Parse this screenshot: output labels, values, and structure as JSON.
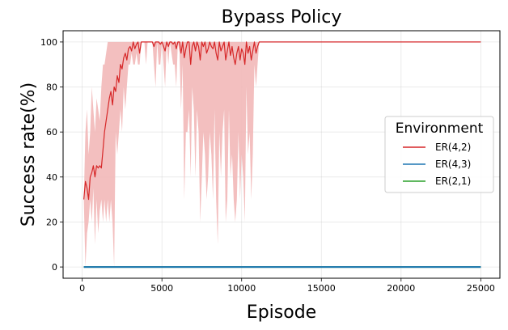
{
  "chart_data": {
    "type": "line",
    "title": "Bypass Policy",
    "xlabel": "Episode",
    "ylabel": "Success rate(%)",
    "xlim": [
      -1200,
      26200
    ],
    "ylim": [
      -5,
      105
    ],
    "xticks": [
      0,
      5000,
      10000,
      15000,
      20000,
      25000
    ],
    "yticks": [
      0,
      20,
      40,
      60,
      80,
      100
    ],
    "grid": true,
    "legend": {
      "title": "Environment",
      "position": "center-right"
    },
    "series": [
      {
        "name": "ER(4,2)",
        "color": "#d62728",
        "band_color": "#f2b8b8",
        "x": [
          100,
          200,
          300,
          400,
          500,
          600,
          700,
          800,
          900,
          1000,
          1100,
          1200,
          1300,
          1400,
          1500,
          1600,
          1700,
          1800,
          1900,
          2000,
          2100,
          2200,
          2300,
          2400,
          2500,
          2600,
          2700,
          2800,
          2900,
          3000,
          3100,
          3200,
          3300,
          3400,
          3500,
          3600,
          3700,
          3800,
          3900,
          4000,
          4100,
          4200,
          4300,
          4400,
          4500,
          4600,
          4700,
          4800,
          4900,
          5000,
          5100,
          5200,
          5300,
          5400,
          5500,
          5600,
          5700,
          5800,
          5900,
          6000,
          6100,
          6200,
          6300,
          6400,
          6500,
          6600,
          6700,
          6800,
          6900,
          7000,
          7100,
          7200,
          7300,
          7400,
          7500,
          7600,
          7700,
          7800,
          7900,
          8000,
          8100,
          8200,
          8300,
          8400,
          8500,
          8600,
          8700,
          8800,
          8900,
          9000,
          9100,
          9200,
          9300,
          9400,
          9500,
          9600,
          9700,
          9800,
          9900,
          10000,
          10100,
          10200,
          10300,
          10400,
          10500,
          10600,
          10700,
          10800,
          10900,
          11000,
          11100,
          11200,
          25000
        ],
        "y": [
          30,
          38,
          35,
          30,
          40,
          42,
          45,
          40,
          45,
          44,
          45,
          44,
          52,
          60,
          65,
          70,
          75,
          78,
          72,
          80,
          78,
          85,
          82,
          90,
          88,
          93,
          95,
          92,
          97,
          98,
          96,
          100,
          97,
          99,
          100,
          95,
          100,
          100,
          100,
          100,
          100,
          100,
          100,
          100,
          98,
          100,
          100,
          100,
          99,
          100,
          98,
          96,
          100,
          98,
          100,
          100,
          99,
          100,
          97,
          100,
          100,
          95,
          100,
          93,
          97,
          100,
          100,
          90,
          98,
          100,
          96,
          100,
          98,
          92,
          100,
          98,
          100,
          95,
          97,
          100,
          98,
          97,
          100,
          95,
          92,
          100,
          96,
          98,
          100,
          92,
          96,
          100,
          94,
          98,
          93,
          90,
          95,
          98,
          92,
          97,
          95,
          90,
          100,
          95,
          98,
          92,
          96,
          100,
          95,
          98,
          100,
          100,
          100
        ],
        "lower": [
          30,
          0,
          15,
          20,
          30,
          20,
          35,
          10,
          30,
          15,
          25,
          30,
          20,
          30,
          20,
          30,
          20,
          30,
          20,
          0,
          60,
          50,
          60,
          70,
          60,
          80,
          70,
          80,
          90,
          90,
          95,
          90,
          90,
          95,
          90,
          90,
          100,
          100,
          100,
          90,
          100,
          100,
          100,
          100,
          90,
          80,
          100,
          90,
          90,
          100,
          90,
          80,
          100,
          90,
          100,
          95,
          90,
          90,
          80,
          100,
          95,
          70,
          90,
          30,
          60,
          60,
          70,
          40,
          80,
          70,
          40,
          70,
          60,
          20,
          40,
          60,
          50,
          30,
          40,
          60,
          50,
          30,
          70,
          30,
          10,
          60,
          40,
          60,
          70,
          20,
          30,
          70,
          40,
          50,
          30,
          20,
          30,
          60,
          30,
          50,
          40,
          20,
          80,
          50,
          60,
          30,
          50,
          90,
          80,
          90,
          100,
          100,
          100
        ],
        "upper": [
          30,
          60,
          70,
          50,
          60,
          80,
          70,
          60,
          75,
          70,
          65,
          80,
          90,
          90,
          95,
          100,
          100,
          100,
          100,
          100,
          100,
          100,
          100,
          100,
          100,
          100,
          100,
          100,
          100,
          100,
          100,
          100,
          100,
          100,
          100,
          100,
          100,
          100,
          100,
          100,
          100,
          100,
          100,
          100,
          100,
          100,
          100,
          100,
          100,
          100,
          100,
          100,
          100,
          100,
          100,
          100,
          100,
          100,
          100,
          100,
          100,
          100,
          100,
          100,
          100,
          100,
          100,
          100,
          100,
          100,
          100,
          100,
          100,
          100,
          100,
          100,
          100,
          100,
          100,
          100,
          100,
          100,
          100,
          100,
          100,
          100,
          100,
          100,
          100,
          100,
          100,
          100,
          100,
          100,
          100,
          100,
          100,
          100,
          100,
          100,
          100,
          100,
          100,
          100,
          100,
          100,
          100,
          100,
          100,
          100,
          100,
          100,
          100
        ]
      },
      {
        "name": "ER(4,3)",
        "color": "#1f77b4",
        "x": [
          100,
          25000
        ],
        "y": [
          0,
          0
        ]
      },
      {
        "name": "ER(2,1)",
        "color": "#2ca02c",
        "x": [
          100,
          25000
        ],
        "y": [
          0,
          0
        ]
      }
    ]
  }
}
